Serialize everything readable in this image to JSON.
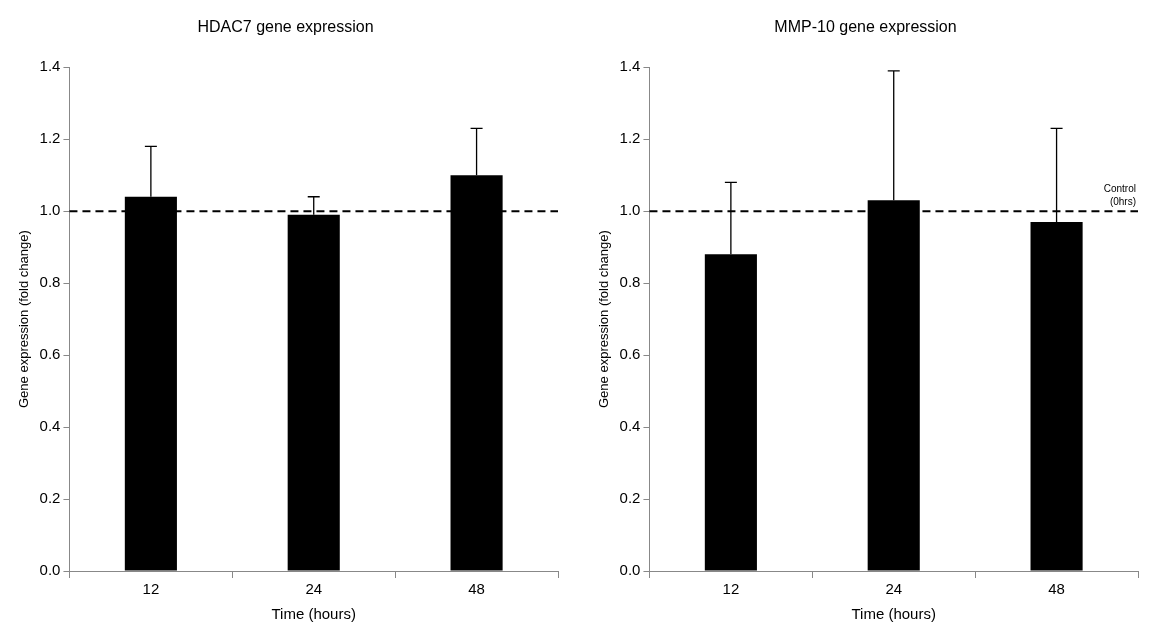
{
  "chart_data": [
    {
      "type": "bar",
      "title": "HDAC7 gene expression",
      "xlabel": "Time (hours)",
      "ylabel": "Gene expression (fold change)",
      "categories": [
        "12",
        "24",
        "48"
      ],
      "series": [
        {
          "color": "#000000",
          "values": [
            1.04,
            0.99,
            1.1
          ],
          "errors": [
            [
              1.04,
              1.18
            ],
            [
              0.99,
              1.04
            ],
            [
              1.1,
              1.23
            ]
          ]
        }
      ],
      "ylim": [
        0,
        1.4
      ],
      "yticks": [
        {
          "value": 0,
          "label": "0.0"
        },
        {
          "value": 0.2,
          "label": "0.2"
        },
        {
          "value": 0.4,
          "label": "0.4"
        },
        {
          "value": 0.6,
          "label": "0.6"
        },
        {
          "value": 0.8,
          "label": "0.8"
        },
        {
          "value": 1,
          "label": "1.0"
        },
        {
          "value": 1.2,
          "label": "1.2"
        },
        {
          "value": 1.4,
          "label": "1.4"
        }
      ],
      "ref_lines": [
        {
          "axis": "y",
          "value": 1,
          "line_style": "dashed",
          "color": "#000000"
        }
      ],
      "grid": false,
      "legend": false
    },
    {
      "type": "bar",
      "title": "MMP-10 gene expression",
      "xlabel": "Time (hours)",
      "ylabel": "Gene expression (fold change)",
      "categories": [
        "12",
        "24",
        "48"
      ],
      "series": [
        {
          "color": "#000000",
          "values": [
            0.88,
            1.03,
            0.97
          ],
          "errors": [
            [
              0.88,
              1.08
            ],
            [
              1.03,
              1.39
            ],
            [
              0.97,
              1.23
            ]
          ]
        }
      ],
      "ylim": [
        0,
        1.4
      ],
      "yticks": [
        {
          "value": 0,
          "label": "0.0"
        },
        {
          "value": 0.2,
          "label": "0.2"
        },
        {
          "value": 0.4,
          "label": "0.4"
        },
        {
          "value": 0.6,
          "label": "0.6"
        },
        {
          "value": 0.8,
          "label": "0.8"
        },
        {
          "value": 1,
          "label": "1.0"
        },
        {
          "value": 1.2,
          "label": "1.2"
        },
        {
          "value": 1.4,
          "label": "1.4"
        }
      ],
      "ref_lines": [
        {
          "axis": "y",
          "value": 1,
          "label": "Control (0hrs)",
          "line_style": "dashed",
          "color": "#000000"
        }
      ],
      "grid": false,
      "legend": false
    }
  ]
}
